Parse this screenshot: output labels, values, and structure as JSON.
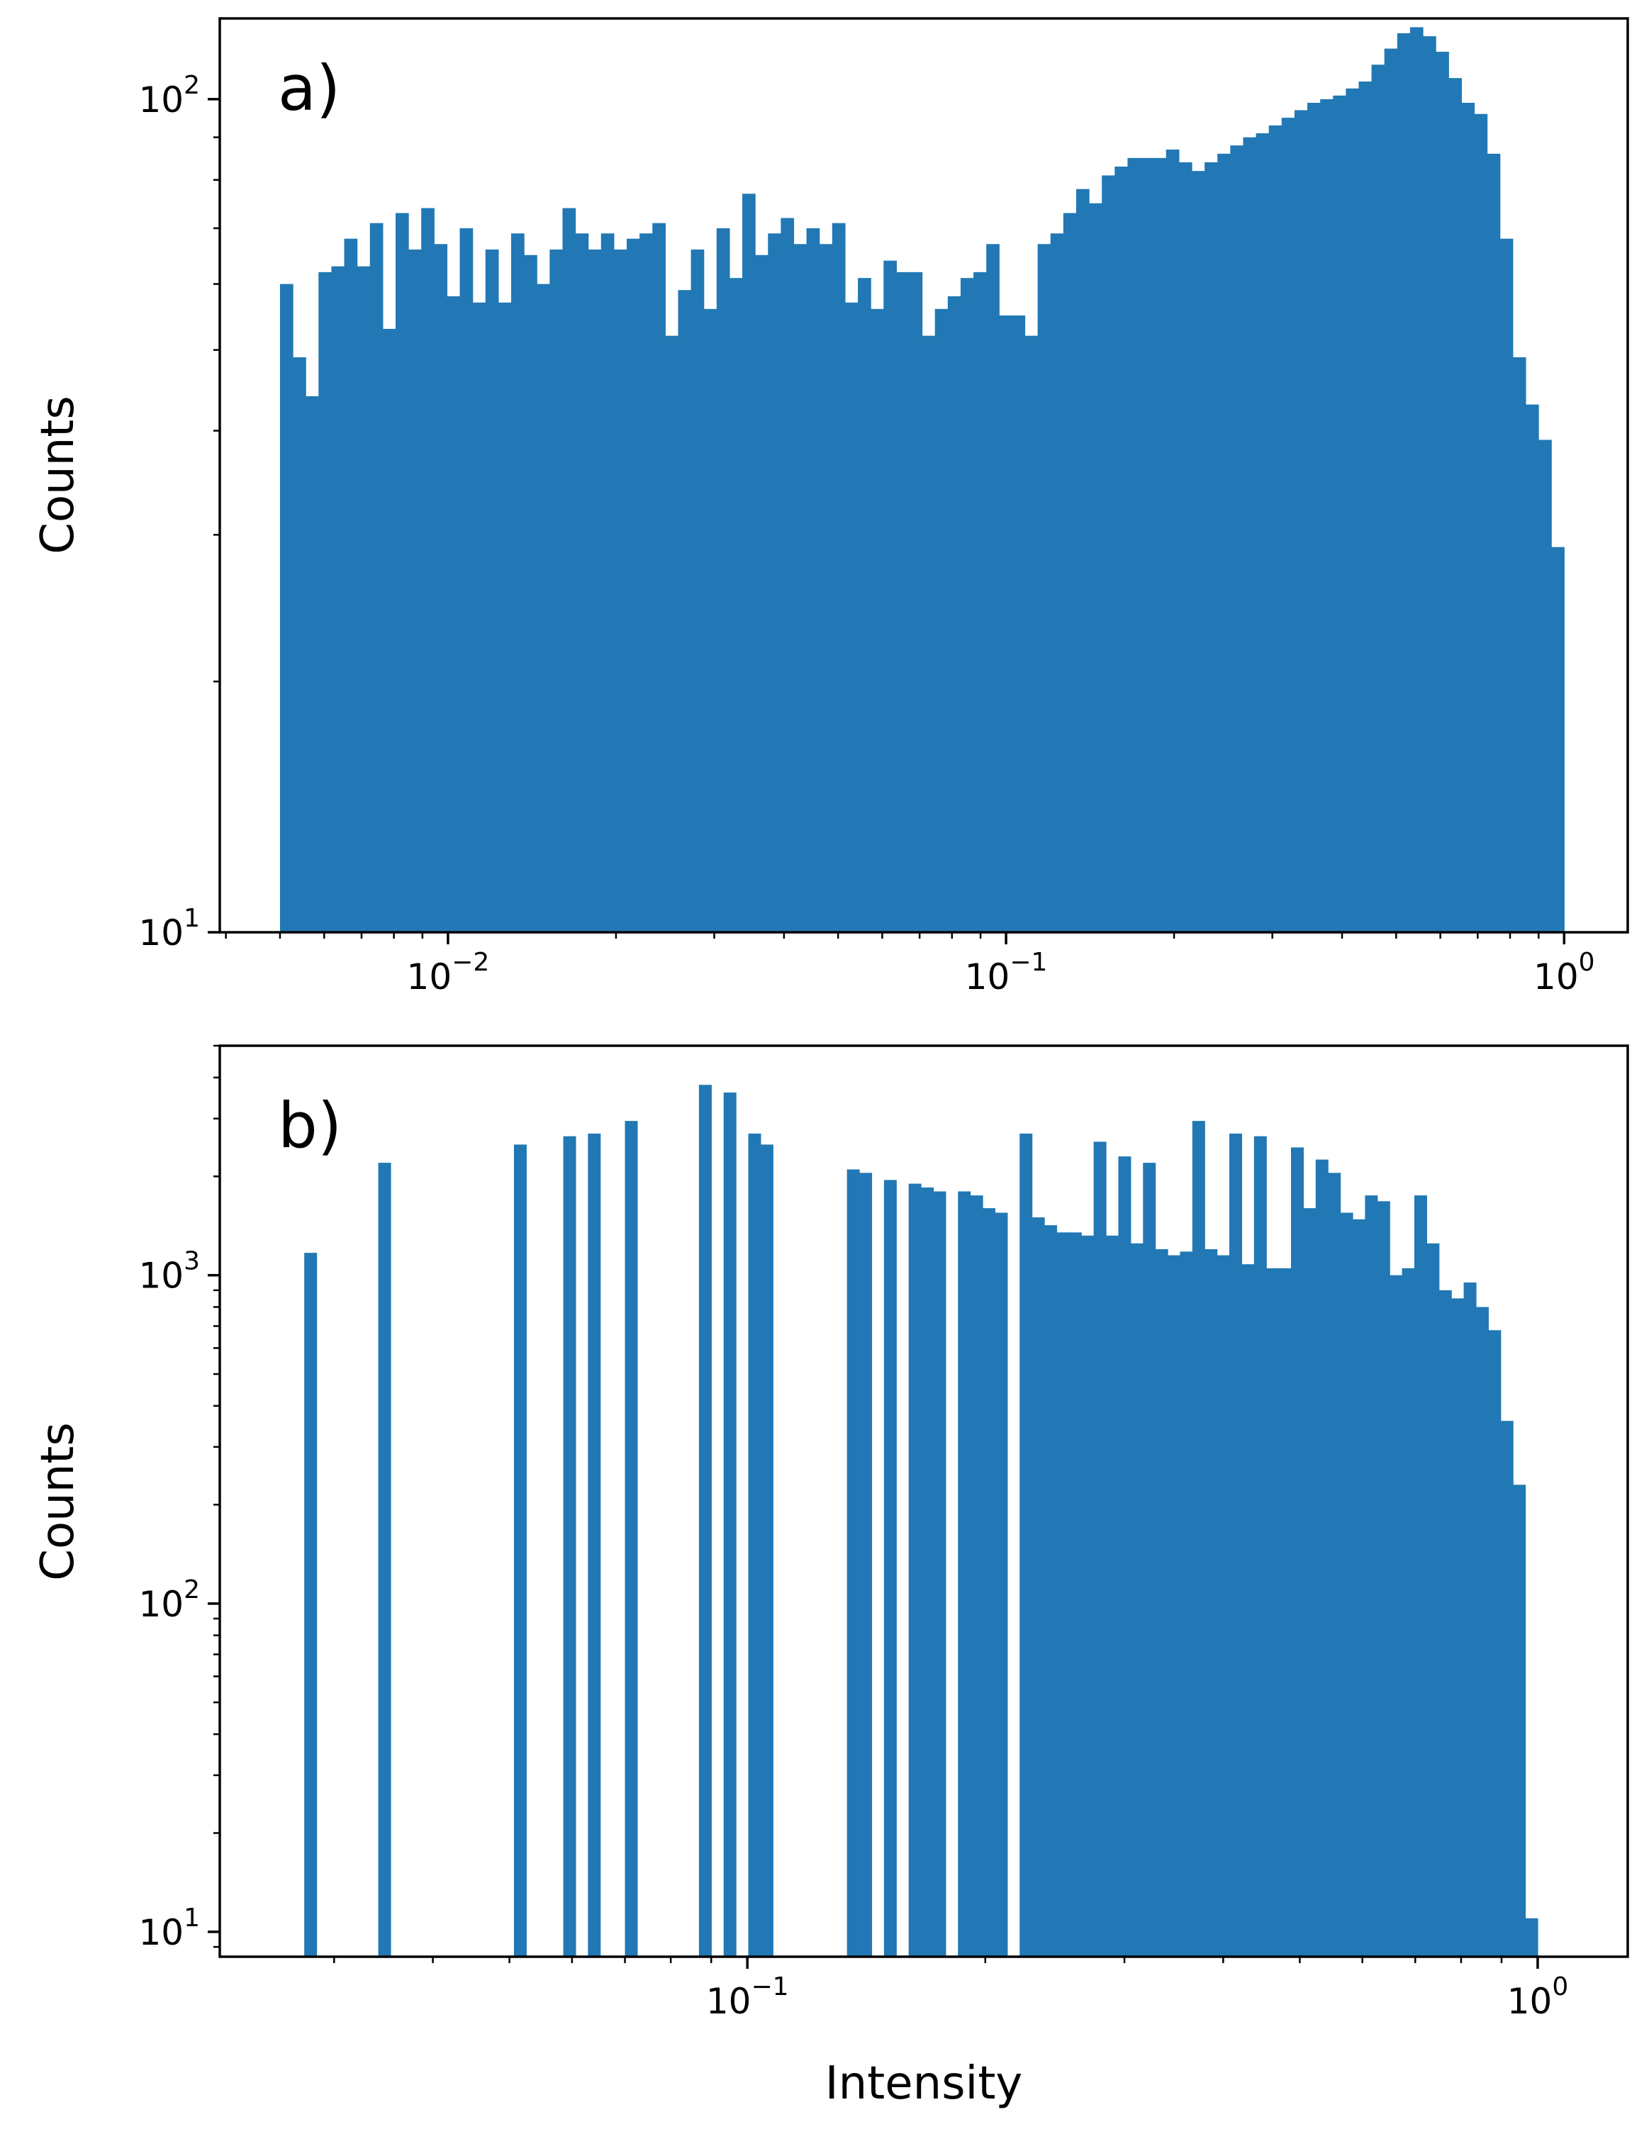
{
  "colors": {
    "bars": "#2178b4",
    "axes": "#000000",
    "background": "#ffffff"
  },
  "chart_data": [
    {
      "type": "bar",
      "panel_label": "a)",
      "xlabel": "",
      "ylabel": "Counts",
      "xscale": "log",
      "yscale": "log",
      "xlim": [
        0.0039,
        1.3
      ],
      "ylim": [
        10,
        125
      ],
      "xticks": [
        {
          "value": 0.01,
          "base": "10",
          "exp": "−2"
        },
        {
          "value": 0.1,
          "base": "10",
          "exp": "−1"
        },
        {
          "value": 1,
          "base": "10",
          "exp": "0"
        }
      ],
      "yticks": [
        {
          "value": 10,
          "base": "10",
          "exp": "1"
        },
        {
          "value": 100,
          "base": "10",
          "exp": "2"
        }
      ],
      "grid": false,
      "bins": {
        "start": 0.005,
        "end": 1.0,
        "count": 100
      },
      "values": [
        60,
        49,
        44,
        62,
        63,
        68,
        63,
        71,
        53,
        73,
        66,
        74,
        67,
        58,
        70,
        57,
        66,
        57,
        69,
        65,
        60,
        66,
        74,
        69,
        66,
        69,
        66,
        68,
        69,
        71,
        52,
        59,
        66,
        56,
        70,
        61,
        77,
        65,
        69,
        72,
        67,
        70,
        67,
        71,
        57,
        61,
        56,
        64,
        62,
        62,
        52,
        56,
        58,
        61,
        62,
        67,
        55,
        55,
        52,
        67,
        69,
        73,
        78,
        75,
        81,
        83,
        85,
        85,
        85,
        87,
        84,
        82,
        84,
        86,
        88,
        90,
        91,
        93,
        95,
        97,
        99,
        100,
        101,
        103,
        105,
        110,
        115,
        120,
        122,
        119,
        114,
        106,
        99,
        96,
        86,
        68,
        49,
        43,
        39,
        29
      ]
    },
    {
      "type": "bar",
      "panel_label": "b)",
      "xlabel": "Intensity",
      "ylabel": "Counts",
      "xscale": "log",
      "yscale": "log",
      "xlim": [
        0.0215,
        1.3
      ],
      "ylim": [
        8.4,
        5000
      ],
      "xticks": [
        {
          "value": 0.1,
          "base": "10",
          "exp": "−1"
        },
        {
          "value": 1,
          "base": "10",
          "exp": "0"
        }
      ],
      "yticks": [
        {
          "value": 10,
          "base": "10",
          "exp": "1"
        },
        {
          "value": 100,
          "base": "10",
          "exp": "2"
        },
        {
          "value": 1000,
          "base": "10",
          "exp": "3"
        }
      ],
      "grid": false,
      "bins": {
        "start": 0.0275,
        "end": 1.0,
        "count": 100
      },
      "values": [
        1170,
        0,
        0,
        0,
        0,
        0,
        2200,
        0,
        0,
        0,
        0,
        0,
        0,
        0,
        0,
        0,
        0,
        2500,
        0,
        0,
        0,
        2650,
        0,
        2700,
        0,
        0,
        2950,
        0,
        0,
        0,
        0,
        0,
        3800,
        0,
        3600,
        0,
        2700,
        2500,
        0,
        0,
        0,
        0,
        0,
        0,
        2100,
        2050,
        0,
        1950,
        0,
        1900,
        1850,
        1800,
        0,
        1800,
        1750,
        1600,
        1550,
        0,
        2700,
        1500,
        1420,
        1350,
        1350,
        1320,
        2550,
        1320,
        2300,
        1250,
        2200,
        1200,
        1150,
        1180,
        2950,
        1200,
        1150,
        2700,
        1080,
        2650,
        1050,
        1050,
        2450,
        1600,
        2250,
        2050,
        1550,
        1480,
        1750,
        1680,
        1000,
        1050,
        1750,
        1250,
        900,
        850,
        950,
        800,
        680,
        360,
        230,
        11
      ]
    }
  ]
}
